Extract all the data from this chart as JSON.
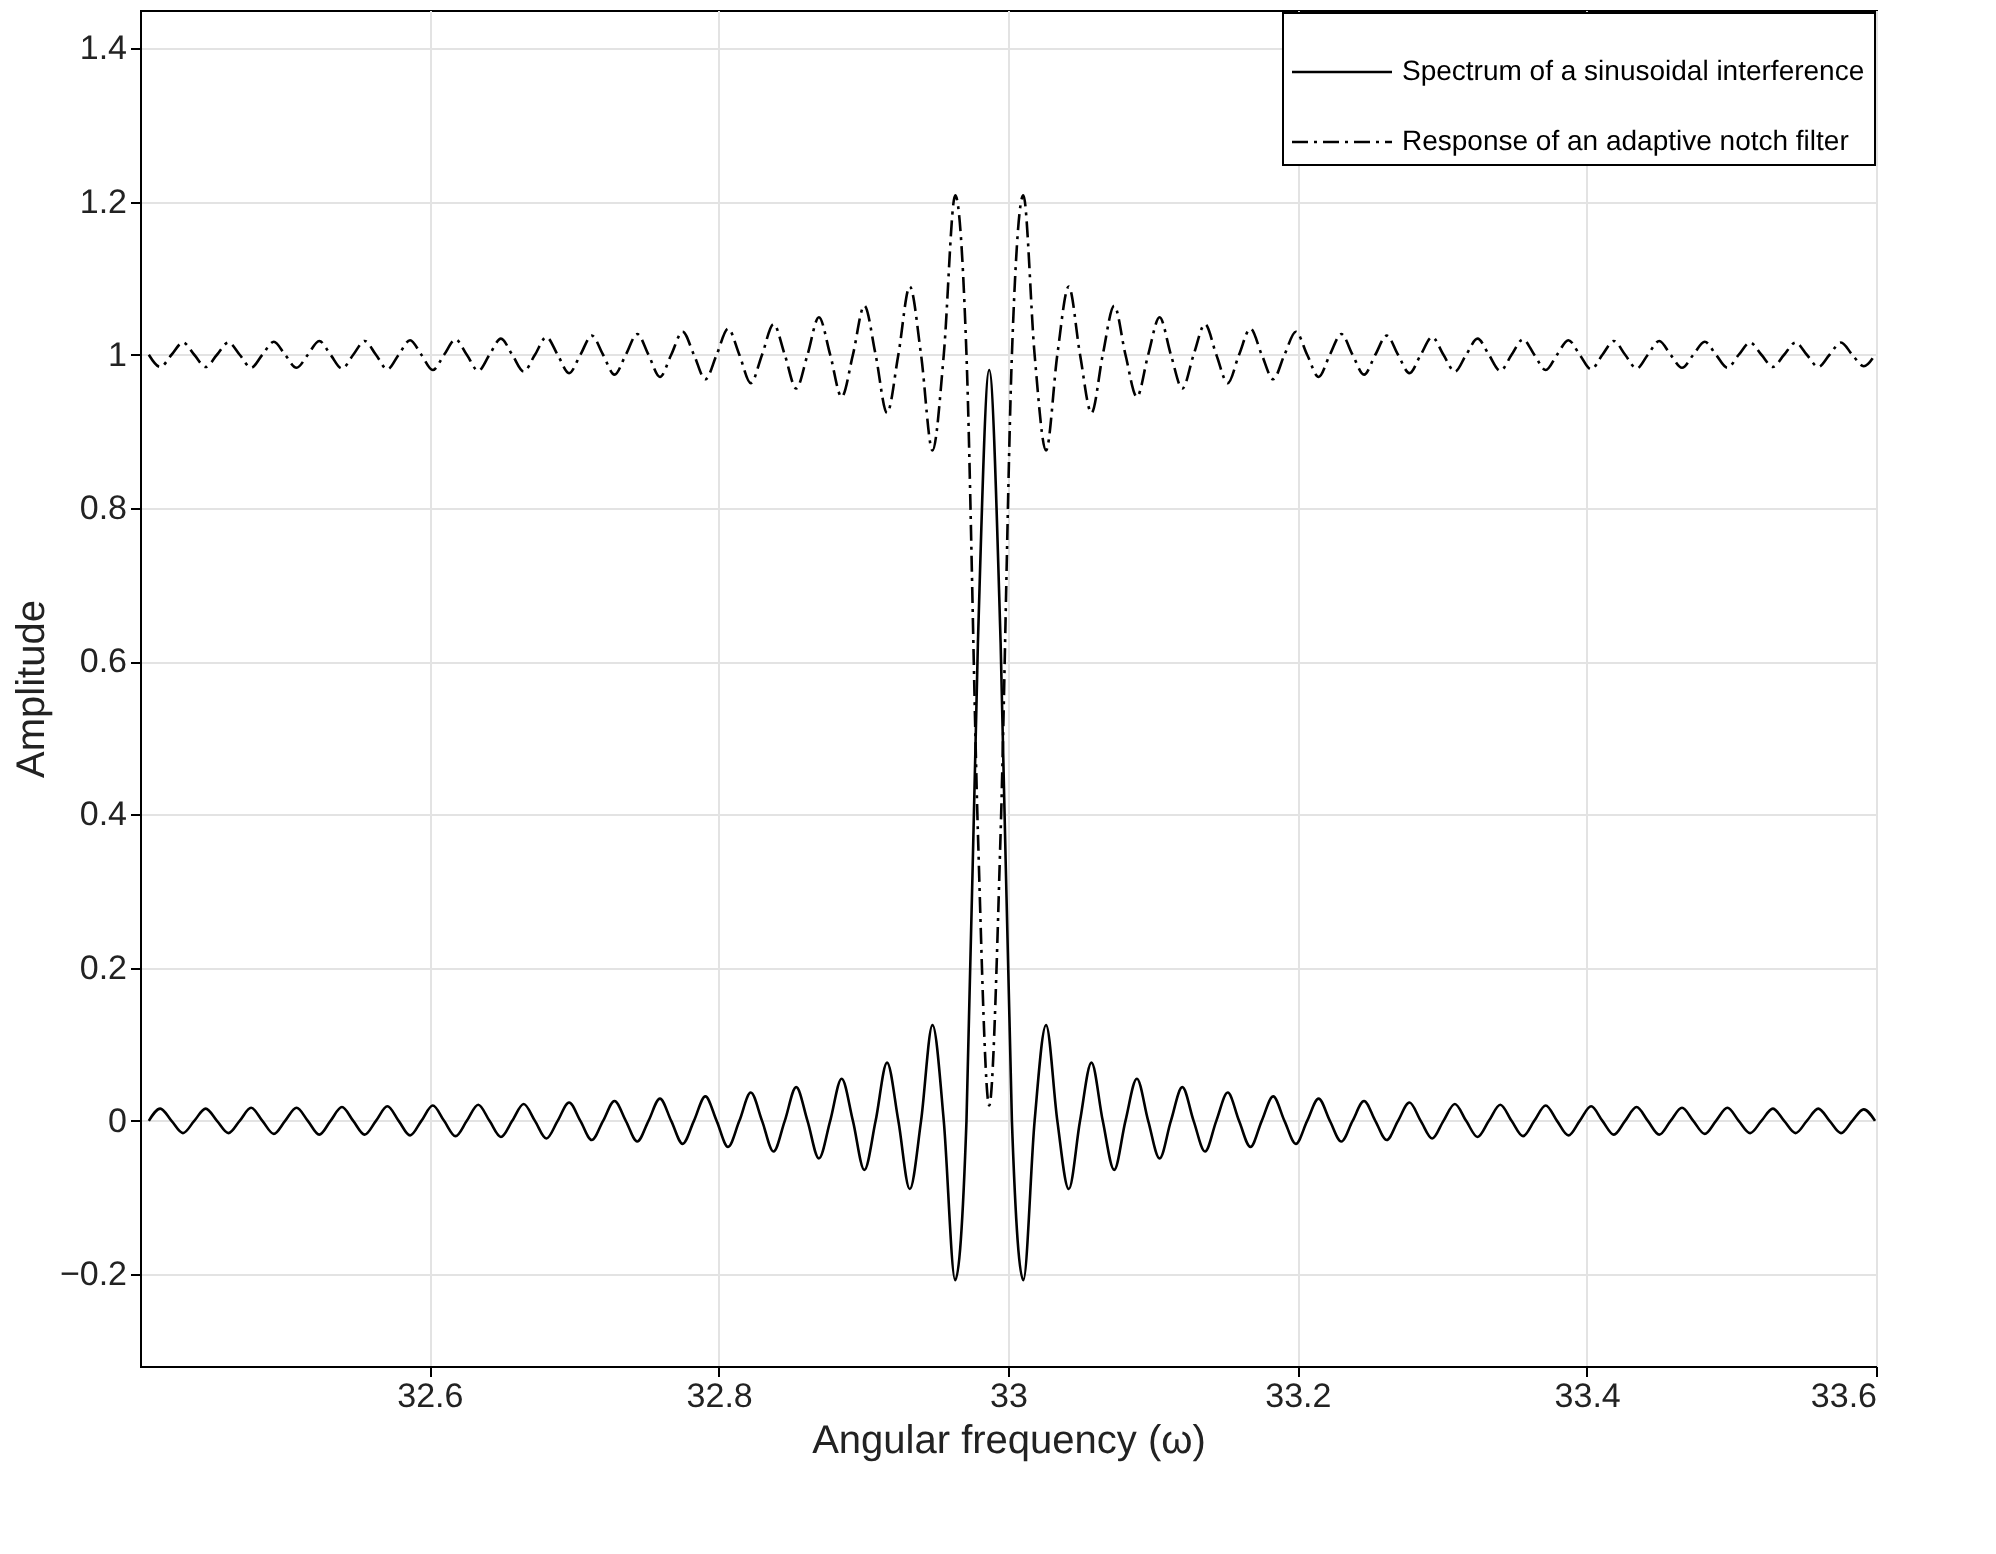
{
  "chart_data": {
    "type": "line",
    "xlabel": "Angular frequency (ω)",
    "ylabel": "Amplitude",
    "xlim": [
      32.4,
      33.6
    ],
    "xticks": [
      32.6,
      32.8,
      33,
      33.2,
      33.4,
      33.6
    ],
    "ylim": [
      -0.32,
      1.45
    ],
    "yticks": [
      -0.2,
      0,
      0.2,
      0.4,
      0.6,
      0.8,
      1,
      1.2,
      1.4
    ],
    "grid": true,
    "legend": "top right",
    "x": [
      32.4061,
      32.414,
      32.4218,
      32.4297,
      32.4375,
      32.4454,
      32.4532,
      32.4611,
      32.4689,
      32.4768,
      32.4846,
      32.4925,
      32.5003,
      32.5082,
      32.516,
      32.5239,
      32.5317,
      32.5396,
      32.5474,
      32.5553,
      32.5631,
      32.571,
      32.5788,
      32.5867,
      32.5945,
      32.6024,
      32.6102,
      32.6181,
      32.6259,
      32.6338,
      32.6416,
      32.6495,
      32.6573,
      32.6652,
      32.673,
      32.6809,
      32.6887,
      32.6966,
      32.7044,
      32.7123,
      32.7201,
      32.728,
      32.7358,
      32.7437,
      32.7515,
      32.7594,
      32.7672,
      32.7751,
      32.7829,
      32.7908,
      32.7986,
      32.8065,
      32.8143,
      32.8222,
      32.83,
      32.8379,
      32.8457,
      32.8536,
      32.8614,
      32.8693,
      32.8771,
      32.885,
      32.8928,
      32.9007,
      32.9085,
      32.9164,
      32.9242,
      32.9321,
      32.9399,
      32.9478,
      32.9556,
      32.9635,
      32.9713,
      32.9792,
      32.987,
      32.9949,
      33.0027,
      33.0106,
      33.0184,
      33.0263,
      33.0341,
      33.042,
      33.0498,
      33.0577,
      33.0655,
      33.0734,
      33.0812,
      33.0891,
      33.0969,
      33.1048,
      33.1126,
      33.1205,
      33.1283,
      33.1362,
      33.144,
      33.1519,
      33.1597,
      33.1676,
      33.1754,
      33.1833,
      33.1911,
      33.199,
      33.2068,
      33.2147,
      33.2225,
      33.2304,
      33.2382,
      33.2461,
      33.2539,
      33.2618,
      33.2696,
      33.2775,
      33.2853,
      33.2932,
      33.301,
      33.3089,
      33.3167,
      33.3246,
      33.3324,
      33.3403,
      33.3481,
      33.356,
      33.3638,
      33.3717,
      33.3795,
      33.3874,
      33.3952,
      33.4031,
      33.4109,
      33.4188,
      33.4266,
      33.4345,
      33.4423,
      33.4502,
      33.458,
      33.4659,
      33.4737,
      33.4816,
      33.4894,
      33.4973,
      33.5051,
      33.513,
      33.5208,
      33.5287,
      33.5365,
      33.5444,
      33.5522,
      33.5601,
      33.5679,
      33.5758,
      33.5836,
      33.5915,
      33.5993
    ],
    "series": [
      {
        "name": "Spectrum of a sinusoidal interference",
        "color": "#000000",
        "line_style": "solid",
        "values": [
          0,
          0.016,
          0,
          -0.016,
          0,
          0.016,
          0,
          -0.016,
          0,
          0.017,
          0,
          -0.017,
          0,
          0.017,
          0,
          -0.018,
          0,
          0.018,
          0,
          -0.018,
          0,
          0.019,
          0,
          -0.019,
          0,
          0.02,
          0,
          -0.02,
          0,
          0.021,
          0,
          -0.021,
          0,
          0.022,
          0,
          -0.023,
          0,
          0.024,
          0,
          -0.025,
          0,
          0.026,
          0,
          -0.027,
          0,
          0.029,
          0,
          -0.03,
          0,
          0.032,
          0,
          -0.034,
          0,
          0.037,
          0,
          -0.04,
          0,
          0.044,
          0,
          -0.049,
          0,
          0.055,
          0,
          -0.064,
          0,
          0.076,
          0,
          -0.089,
          0,
          0.125,
          0,
          -0.208,
          0,
          0.624,
          0.98,
          0.624,
          0,
          -0.208,
          0,
          0.125,
          0,
          -0.089,
          0,
          0.076,
          0,
          -0.064,
          0,
          0.055,
          0,
          -0.049,
          0,
          0.044,
          0,
          -0.04,
          0,
          0.037,
          0,
          -0.034,
          0,
          0.032,
          0,
          -0.03,
          0,
          0.029,
          0,
          -0.027,
          0,
          0.026,
          0,
          -0.025,
          0,
          0.024,
          0,
          -0.023,
          0,
          0.022,
          0,
          -0.021,
          0,
          0.021,
          0,
          -0.02,
          0,
          0.02,
          0,
          -0.019,
          0,
          0.019,
          0,
          -0.018,
          0,
          0.018,
          0,
          -0.018,
          0,
          0.017,
          0,
          -0.017,
          0,
          0.017,
          0,
          -0.016,
          0,
          0.016,
          0,
          -0.016,
          0,
          0.016,
          0,
          -0.016,
          0,
          0.015,
          0
        ]
      },
      {
        "name": "Response of an adaptive notch filter",
        "color": "#000000",
        "line_style": "dashdot",
        "values": [
          1,
          0.984,
          1,
          1.016,
          1,
          0.984,
          1,
          1.016,
          1,
          0.983,
          1,
          1.017,
          1,
          0.983,
          1,
          1.018,
          1,
          0.982,
          1,
          1.018,
          1,
          0.981,
          1,
          1.019,
          1,
          0.98,
          1,
          1.02,
          1,
          0.979,
          1,
          1.021,
          1,
          0.978,
          1,
          1.023,
          1,
          0.976,
          1,
          1.025,
          1,
          0.974,
          1,
          1.027,
          1,
          0.971,
          1,
          1.03,
          1,
          0.968,
          1,
          1.034,
          1,
          0.963,
          1,
          1.04,
          1,
          0.956,
          1,
          1.049,
          1,
          0.945,
          1,
          1.064,
          1,
          0.924,
          1,
          1.089,
          1,
          0.875,
          1,
          1.208,
          1,
          0.376,
          0.02,
          0.376,
          1,
          1.208,
          1,
          0.875,
          1,
          1.089,
          1,
          0.924,
          1,
          1.064,
          1,
          0.945,
          1,
          1.049,
          1,
          0.956,
          1,
          1.04,
          1,
          0.963,
          1,
          1.034,
          1,
          0.968,
          1,
          1.03,
          1,
          0.971,
          1,
          1.027,
          1,
          0.974,
          1,
          1.025,
          1,
          0.976,
          1,
          1.023,
          1,
          0.978,
          1,
          1.021,
          1,
          0.979,
          1,
          1.02,
          1,
          0.98,
          1,
          1.019,
          1,
          0.981,
          1,
          1.018,
          1,
          0.982,
          1,
          1.018,
          1,
          0.983,
          1,
          1.017,
          1,
          0.983,
          1,
          1.016,
          1,
          0.984,
          1,
          1.016,
          1,
          0.984,
          1,
          1.016,
          1,
          0.985,
          1
        ]
      }
    ]
  }
}
